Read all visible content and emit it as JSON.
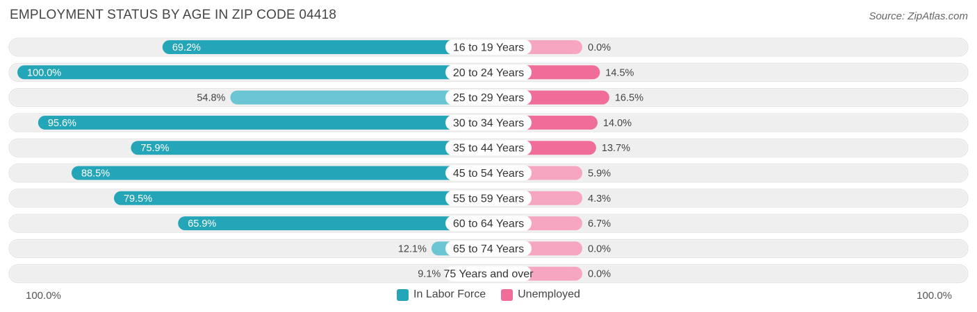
{
  "title": "EMPLOYMENT STATUS BY AGE IN ZIP CODE 04418",
  "source": "Source: ZipAtlas.com",
  "colors": {
    "labor_force": "#3aacbe",
    "labor_force_dark": "#24a6b8",
    "unemployed": "#f06d9a",
    "unemployed_light": "#f6a6c0",
    "row_bg": "#efefef"
  },
  "chart_data": {
    "type": "bar",
    "orientation": "diverging-horizontal",
    "categories": [
      "16 to 19 Years",
      "20 to 24 Years",
      "25 to 29 Years",
      "30 to 34 Years",
      "35 to 44 Years",
      "45 to 54 Years",
      "55 to 59 Years",
      "60 to 64 Years",
      "65 to 74 Years",
      "75 Years and over"
    ],
    "series": [
      {
        "name": "In Labor Force",
        "values": [
          69.2,
          100.0,
          54.8,
          95.6,
          75.9,
          88.5,
          79.5,
          65.9,
          12.1,
          9.1
        ],
        "labels": [
          "69.2%",
          "100.0%",
          "54.8%",
          "95.6%",
          "75.9%",
          "88.5%",
          "79.5%",
          "65.9%",
          "12.1%",
          "9.1%"
        ]
      },
      {
        "name": "Unemployed",
        "values": [
          0.0,
          14.5,
          16.5,
          14.0,
          13.7,
          5.9,
          4.3,
          6.7,
          0.0,
          0.0
        ],
        "labels": [
          "0.0%",
          "14.5%",
          "16.5%",
          "14.0%",
          "13.7%",
          "5.9%",
          "4.3%",
          "6.7%",
          "0.0%",
          "0.0%"
        ]
      }
    ],
    "xlim_left": [
      0,
      100
    ],
    "xlim_right": [
      0,
      100
    ],
    "axis_left_label": "100.0%",
    "axis_right_label": "100.0%",
    "legend_position": "bottom-center"
  }
}
